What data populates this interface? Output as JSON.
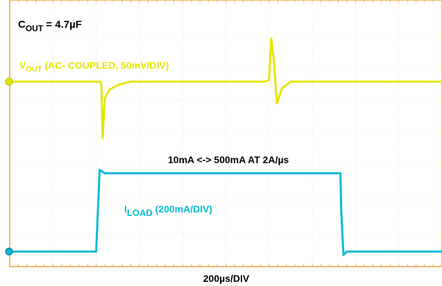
{
  "chart_data": {
    "type": "line",
    "title": "",
    "xlabel": "200µs/DIV",
    "annotations": {
      "cout_main": "C",
      "cout_sub": "OUT",
      "cout_value": " = 4.7µF",
      "load_step": "10mA <-> 500mA AT 2A/µs"
    },
    "grid": true,
    "divisions": {
      "x": 10,
      "y": 8
    },
    "time_per_div_us": 200,
    "series": [
      {
        "name_main": "V",
        "name_sub": "OUT",
        "name_rest": " (AC- COUPLED, 50mV/DIV)",
        "color": "#e6e600",
        "scale": "50mV/DIV",
        "x_div": [
          0,
          2.1,
          2.12,
          2.15,
          2.2,
          2.3,
          2.5,
          2.8,
          5.9,
          6.0,
          6.05,
          6.12,
          6.18,
          6.3,
          6.5,
          10
        ],
        "y_div": [
          0,
          0,
          -0.1,
          -1.7,
          -0.5,
          -0.25,
          -0.1,
          0,
          0,
          0.05,
          1.3,
          0.5,
          -0.65,
          -0.2,
          0,
          0
        ]
      },
      {
        "name_main": "I",
        "name_sub": "LOAD",
        "name_rest": " (200mA/DIV)",
        "color": "#00bcd4",
        "scale": "200mA/DIV",
        "x_div": [
          0,
          2.0,
          2.02,
          2.08,
          2.2,
          2.4,
          7.65,
          7.67,
          7.72,
          7.8,
          8.0,
          10
        ],
        "y_div": [
          0,
          0,
          0.6,
          2.45,
          2.35,
          2.35,
          2.35,
          1.2,
          -0.1,
          0,
          0,
          0
        ]
      }
    ]
  }
}
